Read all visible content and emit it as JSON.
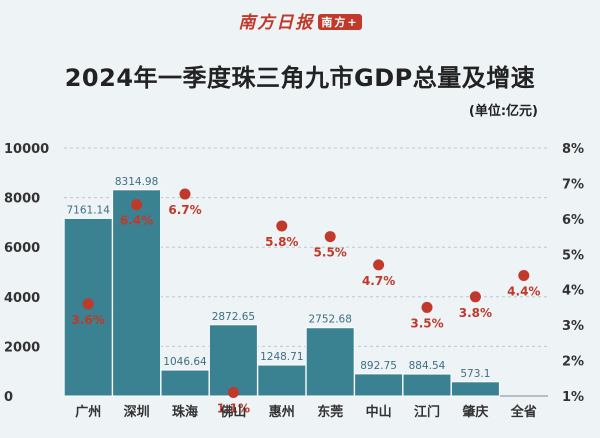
{
  "header": {
    "logo_text": "南方日报",
    "logo_seal": "南方+",
    "title": "2024年一季度珠三角九市GDP总量及增速",
    "unit": "(单位:亿元)"
  },
  "colors": {
    "bar": "#3a8191",
    "bar_label": "#3f6f82",
    "dot": "#c0392b",
    "rate_label": "#c0392b",
    "grid": "#b9c9d2",
    "axis_text": "#333333"
  },
  "chart_data": {
    "type": "bar",
    "title": "2024年一季度珠三角九市GDP总量及增速",
    "categories": [
      "广州",
      "深圳",
      "珠海",
      "佛山",
      "惠州",
      "东莞",
      "中山",
      "江门",
      "肇庆",
      "全省"
    ],
    "series": [
      {
        "kind": "bar",
        "axis": "left",
        "values": [
          7161.14,
          8314.98,
          1046.64,
          2872.65,
          1248.71,
          2752.68,
          892.75,
          884.54,
          573.1,
          null
        ],
        "labels": [
          "7161.14",
          "8314.98",
          "1046.64",
          "2872.65",
          "1248.71",
          "2752.68",
          "892.75",
          "884.54",
          "573.1",
          ""
        ]
      },
      {
        "kind": "scatter",
        "axis": "right",
        "values": [
          3.6,
          6.4,
          6.7,
          1.1,
          5.8,
          5.5,
          4.7,
          3.5,
          3.8,
          4.4
        ],
        "labels": [
          "3.6%",
          "6.4%",
          "6.7%",
          "1.1%",
          "5.8%",
          "5.5%",
          "4.7%",
          "3.5%",
          "3.8%",
          "4.4%"
        ]
      }
    ],
    "y_left": {
      "ylim": [
        0,
        10000
      ],
      "ticks": [
        0,
        2000,
        4000,
        6000,
        8000,
        10000
      ],
      "tick_labels": [
        "0",
        "2000",
        "4000",
        "6000",
        "8000",
        "10000"
      ]
    },
    "y_right": {
      "ylim": [
        1,
        8
      ],
      "ticks": [
        1,
        2,
        3,
        4,
        5,
        6,
        7,
        8
      ],
      "tick_labels": [
        "1%",
        "2%",
        "3%",
        "4%",
        "5%",
        "6%",
        "7%",
        "8%"
      ]
    },
    "grid": true,
    "legend": "none"
  }
}
